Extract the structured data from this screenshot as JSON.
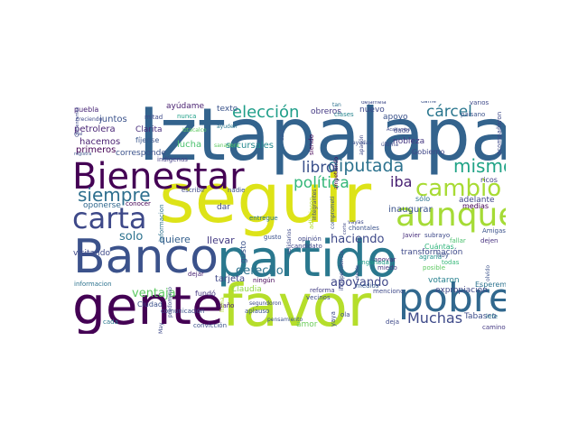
{
  "words": [
    {
      "text": "Iztapalapa",
      "color": "#33638d"
    },
    {
      "text": "seguir",
      "color": "#dde318"
    },
    {
      "text": "Banco",
      "color": "#3b528b"
    },
    {
      "text": "partido",
      "color": "#2a788e"
    },
    {
      "text": "gente",
      "color": "#440154"
    },
    {
      "text": "favor",
      "color": "#b5de2b"
    },
    {
      "text": "pobre",
      "color": "#31688e"
    },
    {
      "text": "Bienestar",
      "color": "#440154"
    },
    {
      "text": "aunque",
      "color": "#a5db36"
    },
    {
      "text": "carta",
      "color": "#3e4989"
    },
    {
      "text": "cambio",
      "color": "#a8db34"
    },
    {
      "text": "mismo",
      "color": "#20a386"
    },
    {
      "text": "siempre",
      "color": "#2e6f8e"
    },
    {
      "text": "diputada",
      "color": "#2c728e"
    },
    {
      "text": "elección",
      "color": "#1f9e89"
    },
    {
      "text": "cárcel",
      "color": "#2a768e"
    },
    {
      "text": "libro",
      "color": "#3b518b"
    },
    {
      "text": "política",
      "color": "#35b779"
    },
    {
      "text": "iba",
      "color": "#482173"
    },
    {
      "text": "Muchas",
      "color": "#3e4a89"
    },
    {
      "text": "haciendo",
      "color": "#3e4989"
    },
    {
      "text": "derecho",
      "color": "#2c728e"
    },
    {
      "text": "apoyando",
      "color": "#3f4788"
    },
    {
      "text": "ventaja",
      "color": "#5ec962"
    },
    {
      "text": "solo",
      "color": "#2c728e"
    },
    {
      "text": "quiere",
      "color": "#35608d"
    },
    {
      "text": "llevar",
      "color": "#443b84"
    },
    {
      "text": "tarjeta",
      "color": "#3f4889"
    },
    {
      "text": "Claudia",
      "color": "#8fd744"
    },
    {
      "text": "lucha",
      "color": "#4ac16d"
    },
    {
      "text": "sucursales",
      "color": "#23888e"
    },
    {
      "text": "juntos",
      "color": "#3b528b"
    },
    {
      "text": "petrolera",
      "color": "#482475"
    },
    {
      "text": "primeros",
      "color": "#440154"
    },
    {
      "text": "hacemos",
      "color": "#481f70"
    },
    {
      "text": "visitando",
      "color": "#3e4989"
    },
    {
      "text": "oponerse",
      "color": "#31688e"
    },
    {
      "text": "Clarita",
      "color": "#472c7a"
    },
    {
      "text": "texto",
      "color": "#3a538b"
    },
    {
      "text": "ayúdame",
      "color": "#481f70"
    },
    {
      "text": "corresponde",
      "color": "#3b528b"
    },
    {
      "text": "fíjense",
      "color": "#39568c"
    },
    {
      "text": "puebla",
      "color": "#482576"
    },
    {
      "text": "Gobierno",
      "color": "#3f4788"
    },
    {
      "text": "sólo",
      "color": "#2c718e"
    },
    {
      "text": "adelante",
      "color": "#414487"
    },
    {
      "text": "inaugurar",
      "color": "#3b528b"
    },
    {
      "text": "nobleza",
      "color": "#453781"
    },
    {
      "text": "transformación",
      "color": "#3e4989"
    },
    {
      "text": "expropiación",
      "color": "#3f4788"
    },
    {
      "text": "votaron",
      "color": "#27808e"
    },
    {
      "text": "Tabasco",
      "color": "#3d4d8a"
    },
    {
      "text": "Cuántas",
      "color": "#2fb47c"
    },
    {
      "text": "medias",
      "color": "#440154"
    },
    {
      "text": "ricos",
      "color": "#433e85"
    },
    {
      "text": "Esperemos",
      "color": "#2c728e"
    },
    {
      "text": "Amigas",
      "color": "#3b528b"
    },
    {
      "text": "fallar",
      "color": "#4ac16d"
    },
    {
      "text": "dejen",
      "color": "#46307e"
    },
    {
      "text": "apoyar",
      "color": "#482878"
    },
    {
      "text": "miedo",
      "color": "#453882"
    },
    {
      "text": "medios",
      "color": "#38598c"
    },
    {
      "text": "menciono",
      "color": "#3e4989"
    },
    {
      "text": "Javier",
      "color": "#472d7b"
    },
    {
      "text": "subrayo",
      "color": "#3e4989"
    },
    {
      "text": "agraria",
      "color": "#21918c"
    },
    {
      "text": "posible",
      "color": "#5ec962"
    },
    {
      "text": "todas",
      "color": "#35b779"
    },
    {
      "text": "hoy",
      "color": "#3b528b"
    },
    {
      "text": "engañada",
      "color": "#1fa088"
    },
    {
      "text": "camino",
      "color": "#443983"
    },
    {
      "text": "lefe",
      "color": "#2b758e"
    },
    {
      "text": "ola",
      "color": "#3e4989"
    },
    {
      "text": "deja",
      "color": "#3e4989"
    },
    {
      "text": "vecinos",
      "color": "#3e4a89"
    },
    {
      "text": "reforma",
      "color": "#433d84"
    },
    {
      "text": "amor",
      "color": "#6ccd5a"
    },
    {
      "text": "aplauso",
      "color": "#3a548c"
    },
    {
      "text": "Ciudad",
      "color": "#3b528b"
    },
    {
      "text": "fundó",
      "color": "#453882"
    },
    {
      "text": "dejar",
      "color": "#482475"
    },
    {
      "text": "daño",
      "color": "#482173"
    },
    {
      "text": "dar",
      "color": "#3e4989"
    },
    {
      "text": "entregue",
      "color": "#2c728e"
    },
    {
      "text": "conocer",
      "color": "#440154"
    },
    {
      "text": "gusto",
      "color": "#3b528b"
    },
    {
      "text": "opinión",
      "color": "#3f4788"
    },
    {
      "text": "candidato",
      "color": "#3f4788"
    },
    {
      "text": "cada",
      "color": "#2a788e"
    },
    {
      "text": "informacion",
      "color": "#2c728e"
    },
    {
      "text": "indígenas",
      "color": "#433e85"
    },
    {
      "text": "convicción",
      "color": "#3b528b"
    },
    {
      "text": "comunicación",
      "color": "#3b528b"
    },
    {
      "text": "escribir",
      "color": "#3e4989"
    },
    {
      "text": "nadie",
      "color": "#3b528b"
    },
    {
      "text": "sanadora",
      "color": "#5ec962"
    },
    {
      "text": "Iztacalco",
      "color": "#5ec962"
    },
    {
      "text": "nunca",
      "color": "#1fa088"
    },
    {
      "text": "mitad",
      "color": "#3e4989"
    },
    {
      "text": "obreros",
      "color": "#443983"
    },
    {
      "text": "nuevo",
      "color": "#3e4989"
    },
    {
      "text": "apoyo",
      "color": "#3b528b"
    },
    {
      "text": "clases",
      "color": "#25858e"
    },
    {
      "text": "tan",
      "color": "#2c728e"
    },
    {
      "text": "dejamela",
      "color": "#3e4989"
    },
    {
      "text": "chontales",
      "color": "#3b528b"
    },
    {
      "text": "vayas",
      "color": "#3e4989"
    },
    {
      "text": "ningún",
      "color": "#440154"
    },
    {
      "text": "ayudas",
      "color": "#3b528b"
    },
    {
      "text": "última",
      "color": "#3e4989"
    },
    {
      "text": "dado",
      "color": "#3e4989"
    },
    {
      "text": "dame",
      "color": "#3b528b"
    },
    {
      "text": "varios",
      "color": "#3e4989"
    },
    {
      "text": "paisano",
      "color": "#3b528b"
    },
    {
      "text": "ayuden",
      "color": "#2a788e"
    },
    {
      "text": "creciendo",
      "color": "#3e4989"
    },
    {
      "text": "mal",
      "color": "#3e4989"
    },
    {
      "text": "registra",
      "color": "#3b528b"
    },
    {
      "text": "pensamiento",
      "color": "#3b528b"
    },
    {
      "text": "segundoron",
      "color": "#3e4989"
    },
    {
      "text": "llama",
      "color": "#b5de2b"
    },
    {
      "text": "adhirieron",
      "color": "#b5de2b"
    },
    {
      "text": "yaya",
      "color": "#3e4989"
    },
    {
      "text": "May",
      "color": "#3e4989"
    },
    {
      "text": "predominio",
      "color": "#3e4989"
    },
    {
      "text": "siendo",
      "color": "#440154"
    },
    {
      "text": "azul",
      "color": "#3b528b"
    },
    {
      "text": "solidarios",
      "color": "#3e4989"
    },
    {
      "text": "olvido",
      "color": "#3b528b"
    },
    {
      "text": "acompañaron",
      "color": "#3e4989"
    },
    {
      "text": "ampetiendo",
      "color": "#440154"
    },
    {
      "text": "integrantes",
      "color": "#3e4989"
    },
    {
      "text": "comprometí",
      "color": "#3b528b"
    },
    {
      "text": "corte",
      "color": "#3e4989"
    },
    {
      "text": "independencia",
      "color": "#3e4989"
    },
    {
      "text": "apagón",
      "color": "#3e4989"
    },
    {
      "text": "Acabamos",
      "color": "#3e4989"
    },
    {
      "text": "Comentamos",
      "color": "#3e4989"
    },
    {
      "text": "pierde",
      "color": "#3e4989"
    },
    {
      "text": "sorito",
      "color": "#3e4989"
    },
    {
      "text": "apaga",
      "color": "#3e4989"
    }
  ]
}
